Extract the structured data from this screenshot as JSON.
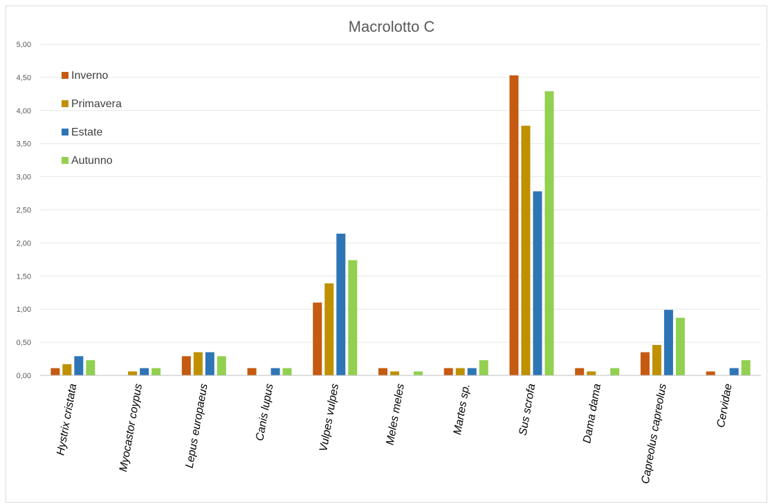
{
  "chart_data": {
    "type": "bar",
    "title": "Macrolotto C",
    "categories": [
      "Hystrix cristata",
      "Myocastor coypus",
      "Lepus europaeus",
      "Canis lupus",
      "Vulpes vulpes",
      "Meles meles",
      "Martes sp.",
      "Sus scrofa",
      "Dama dama",
      "Capreolus capreolus",
      "Cervidae"
    ],
    "series": [
      {
        "name": "Inverno",
        "color": "#c55a11",
        "values": [
          0.11,
          0,
          0.29,
          0.11,
          1.1,
          0.11,
          0.11,
          4.53,
          0.11,
          0.35,
          0.06
        ]
      },
      {
        "name": "Primavera",
        "color": "#bf9000",
        "values": [
          0.17,
          0.06,
          0.35,
          0,
          1.39,
          0.06,
          0.11,
          3.77,
          0.06,
          0.46,
          0
        ]
      },
      {
        "name": "Estate",
        "color": "#2e75b6",
        "values": [
          0.29,
          0.11,
          0.35,
          0.11,
          2.14,
          0,
          0.11,
          2.78,
          0,
          0.99,
          0.11
        ]
      },
      {
        "name": "Autunno",
        "color": "#92d050",
        "values": [
          0.23,
          0.11,
          0.29,
          0.11,
          1.74,
          0.06,
          0.23,
          4.29,
          0.11,
          0.87,
          0.23
        ]
      }
    ],
    "yticks": [
      "0,00",
      "0,50",
      "1,00",
      "1,50",
      "2,00",
      "2,50",
      "3,00",
      "3,50",
      "4,00",
      "4,50",
      "5,00"
    ],
    "ylim": [
      0,
      5
    ],
    "grid": true,
    "legend_position": "top-left"
  }
}
